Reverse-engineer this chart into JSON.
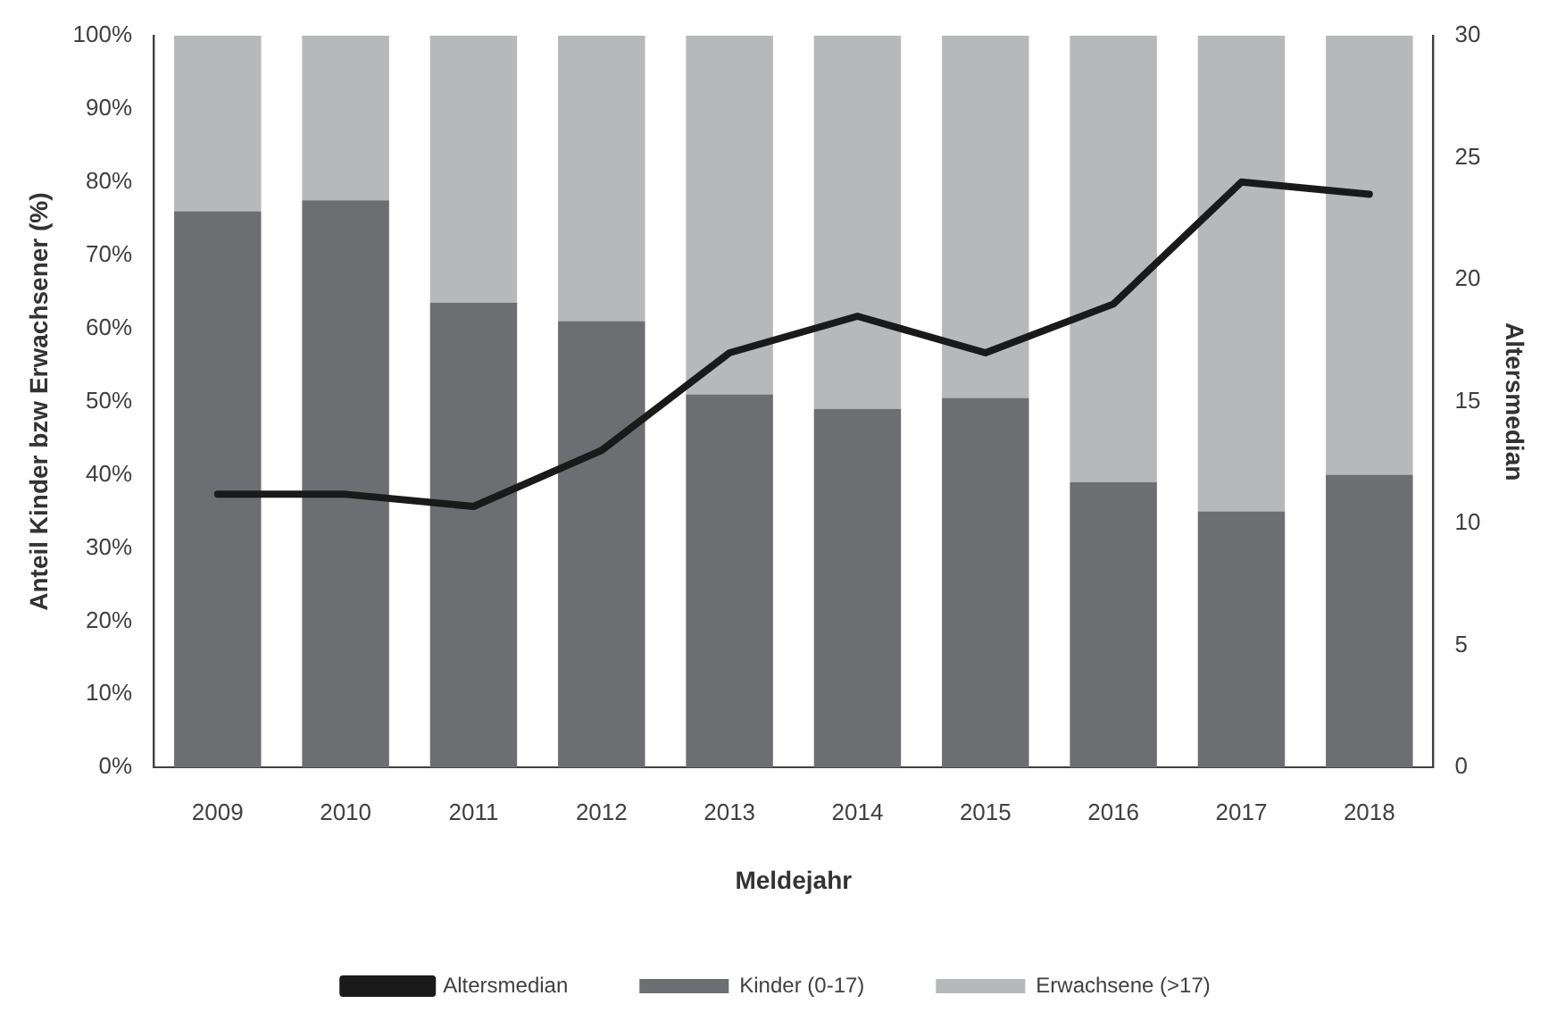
{
  "chart_data": {
    "type": "bar",
    "stacked": true,
    "categories": [
      "2009",
      "2010",
      "2011",
      "2012",
      "2013",
      "2014",
      "2015",
      "2016",
      "2017",
      "2018"
    ],
    "xlabel": "Meldejahr",
    "ylabel": "Anteil Kinder bzw Erwachsener (%)",
    "y2label": "Altersmedian",
    "series": [
      {
        "name": "Kinder (0-17)",
        "color": "#6d6e71",
        "values": [
          76,
          77.5,
          63.5,
          61,
          51,
          49,
          50.5,
          39,
          35,
          40
        ]
      },
      {
        "name": "Erwachsene (>17)",
        "color": "#b7b8ba",
        "values": [
          24,
          22.5,
          36.5,
          39,
          49,
          51,
          49.5,
          61,
          65,
          60
        ]
      },
      {
        "name": "Altersmedian",
        "type": "line",
        "axis": "y2",
        "color": "#1a1a1a",
        "values": [
          11.2,
          11.2,
          10.7,
          13,
          17,
          18.5,
          17,
          19,
          24,
          23.5
        ]
      }
    ],
    "ylim": [
      0,
      100
    ],
    "yticks": [
      {
        "value": 0,
        "label": "0%"
      },
      {
        "value": 10,
        "label": "10%"
      },
      {
        "value": 20,
        "label": "20%"
      },
      {
        "value": 30,
        "label": "30%"
      },
      {
        "value": 40,
        "label": "40%"
      },
      {
        "value": 50,
        "label": "50%"
      },
      {
        "value": 60,
        "label": "60%"
      },
      {
        "value": 70,
        "label": "70%"
      },
      {
        "value": 80,
        "label": "80%"
      },
      {
        "value": 90,
        "label": "90%"
      },
      {
        "value": 100,
        "label": "100%"
      }
    ],
    "y2lim": [
      0,
      30
    ],
    "y2ticks": [
      0,
      5,
      10,
      15,
      20,
      25,
      30
    ],
    "grid": false,
    "legend": "bottom",
    "marker": "none"
  }
}
